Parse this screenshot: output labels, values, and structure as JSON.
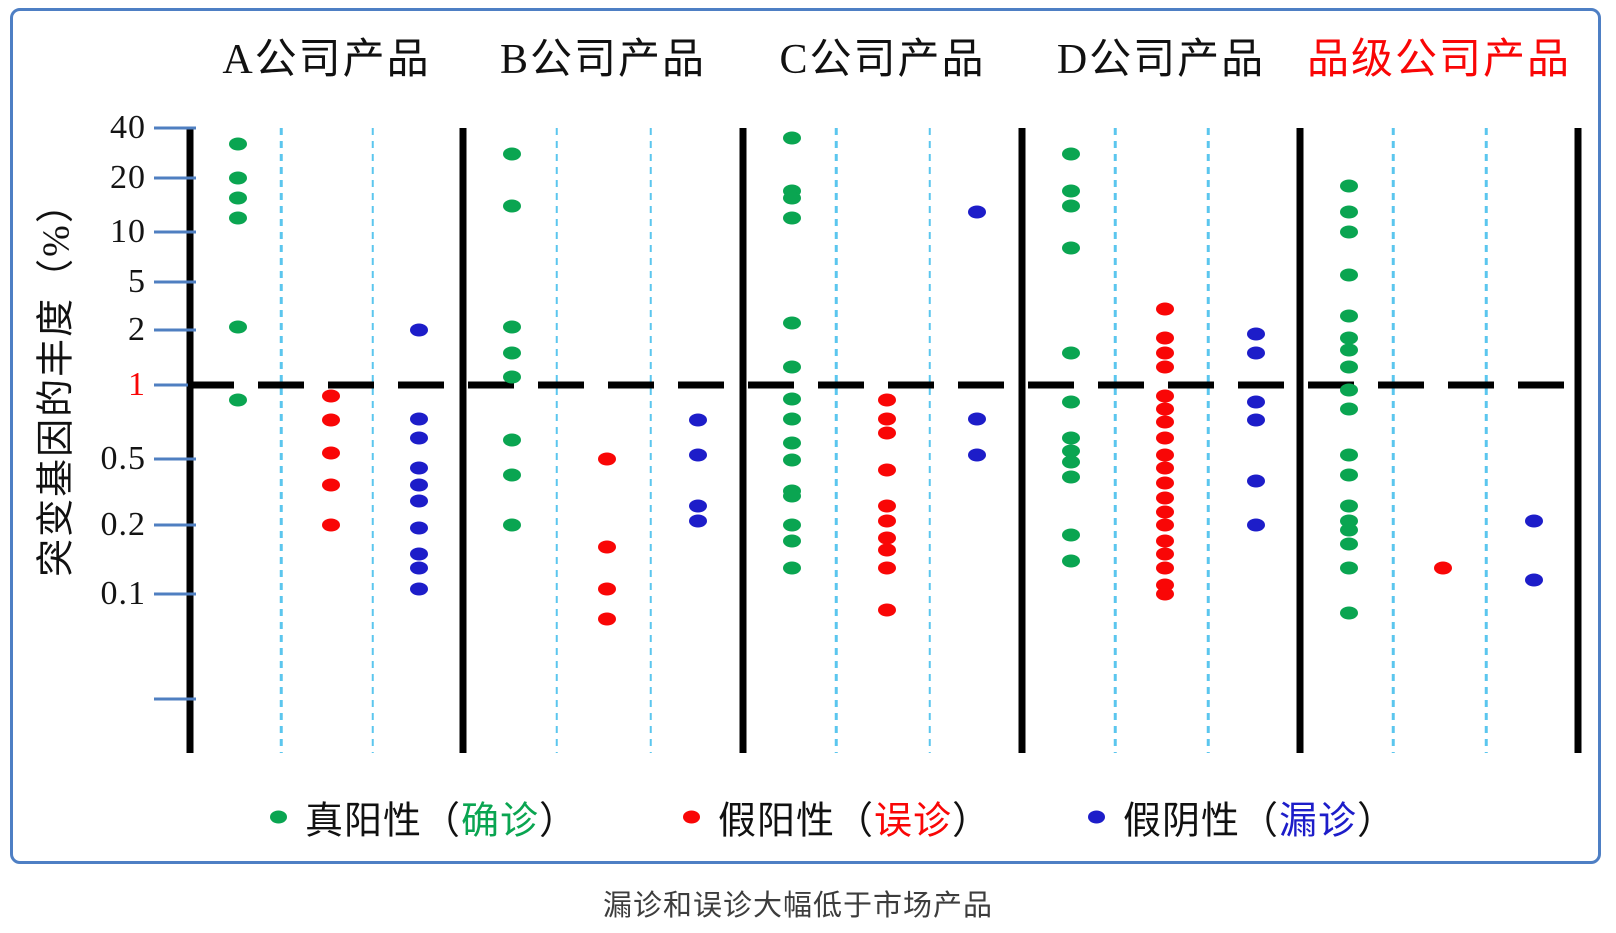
{
  "caption": "漏诊和误诊大幅低于市场产品",
  "frame": {
    "border_color": "#4e7fc4"
  },
  "legend": [
    {
      "prefix": "真阳性（",
      "highlight": "确诊",
      "suffix": "）",
      "color": "#0aa551"
    },
    {
      "prefix": "假阳性（",
      "highlight": "误诊",
      "suffix": "）",
      "color": "#f90606"
    },
    {
      "prefix": "假阴性（",
      "highlight": "漏诊",
      "suffix": "）",
      "color": "#1d1dc9"
    }
  ],
  "chart_data": {
    "type": "scatter",
    "y_scale": "log",
    "ylabel": "突变基因的丰度（%）",
    "yticks": [
      40,
      20,
      10,
      5,
      2,
      1,
      0.5,
      0.2,
      0.1
    ],
    "minor_ticks": [
      0.05
    ],
    "highlight_tick": 1,
    "reference_line": 1,
    "grid": "dotted vertical sub-column separators, dashed horizontal line at 1%",
    "legend_position": "bottom",
    "series_names": [
      "true_positive",
      "false_positive",
      "false_negative"
    ],
    "series_colors": {
      "true_positive": "#0aa551",
      "false_positive": "#f90606",
      "false_negative": "#1d1dc9"
    },
    "groups": [
      {
        "title": "A公司产品",
        "title_color": "#111111",
        "true_positive": [
          32,
          20,
          15.5,
          12,
          2.1,
          0.87
        ],
        "false_positive": [
          0.9,
          0.72,
          0.53,
          0.35,
          0.2
        ],
        "false_negative": [
          2.0,
          0.73,
          0.61,
          0.44,
          0.35,
          0.28,
          0.195,
          0.15,
          0.13,
          0.105
        ]
      },
      {
        "title": "B公司产品",
        "title_color": "#111111",
        "true_positive": [
          28,
          14,
          2.1,
          1.5,
          1.1,
          0.6,
          0.4,
          0.2
        ],
        "false_positive": [
          0.5,
          0.16,
          0.105,
          0.085
        ],
        "false_negative": [
          0.72,
          0.52,
          0.26,
          0.21
        ]
      },
      {
        "title": "C公司产品",
        "title_color": "#111111",
        "true_positive": [
          35,
          17,
          15.5,
          12,
          2.3,
          1.25,
          0.88,
          0.73,
          0.58,
          0.49,
          0.32,
          0.3,
          0.2,
          0.17,
          0.13
        ],
        "false_positive": [
          0.87,
          0.73,
          0.64,
          0.43,
          0.26,
          0.21,
          0.175,
          0.155,
          0.13,
          0.09
        ],
        "false_negative": [
          13,
          0.73,
          0.52
        ]
      },
      {
        "title": "D公司产品",
        "title_color": "#111111",
        "true_positive": [
          28,
          17,
          14,
          8,
          1.5,
          0.85,
          0.61,
          0.54,
          0.48,
          0.39,
          0.18,
          0.14
        ],
        "false_positive": [
          3.0,
          1.8,
          1.5,
          1.25,
          0.9,
          0.8,
          0.71,
          0.61,
          0.52,
          0.44,
          0.36,
          0.29,
          0.24,
          0.2,
          0.17,
          0.15,
          0.13,
          0.11,
          0.1
        ],
        "false_negative": [
          1.9,
          1.5,
          0.85,
          0.72,
          0.37,
          0.2
        ]
      },
      {
        "title": "品级公司产品",
        "title_color": "#f90606",
        "true_positive": [
          18,
          13,
          10,
          5.5,
          2.6,
          1.8,
          1.55,
          1.25,
          0.95,
          0.8,
          0.52,
          0.4,
          0.26,
          0.21,
          0.19,
          0.165,
          0.13,
          0.088
        ],
        "false_positive": [
          0.13
        ],
        "false_negative": [
          0.21,
          0.115
        ]
      }
    ]
  }
}
